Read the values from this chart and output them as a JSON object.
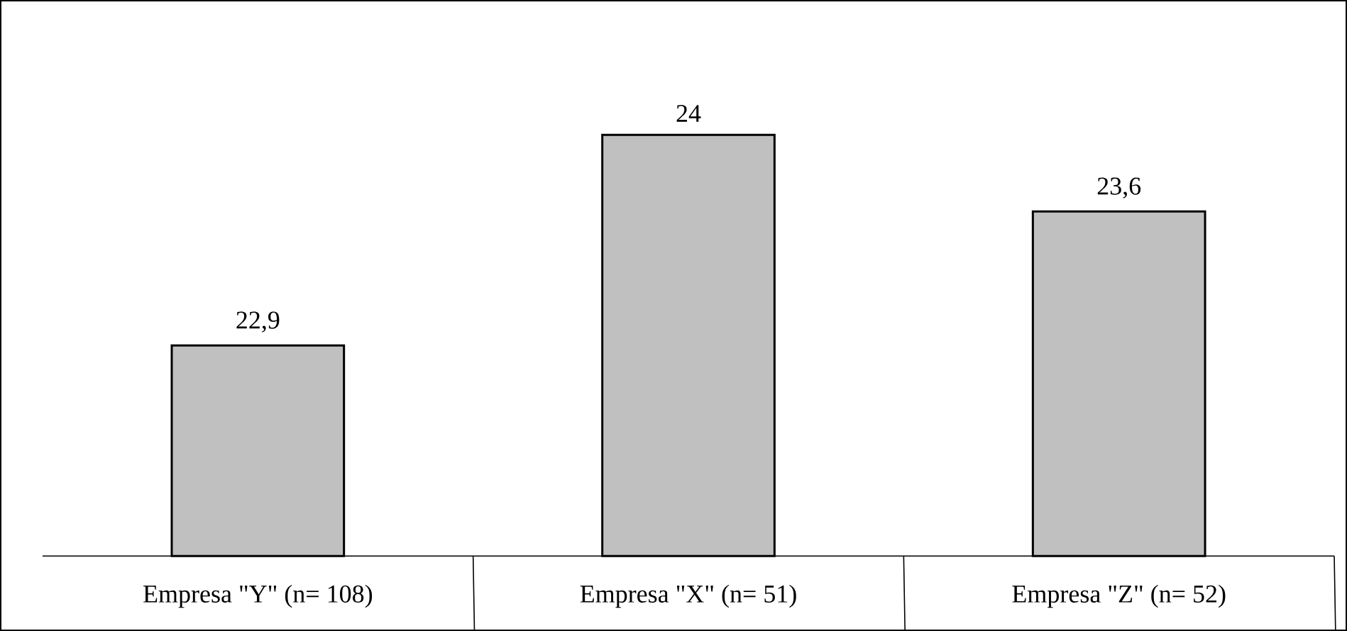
{
  "chart_data": {
    "type": "bar",
    "categories": [
      "Empresa \"Y\" (n= 108)",
      "Empresa \"X\" (n= 51)",
      "Empresa \"Z\" (n= 52)"
    ],
    "values": [
      22.9,
      24,
      23.6
    ],
    "value_labels": [
      "22,9",
      "24",
      "23,6"
    ],
    "color": "#c0c0c0",
    "ylim": [
      21.8,
      24.7
    ],
    "tick_labels": "x"
  }
}
